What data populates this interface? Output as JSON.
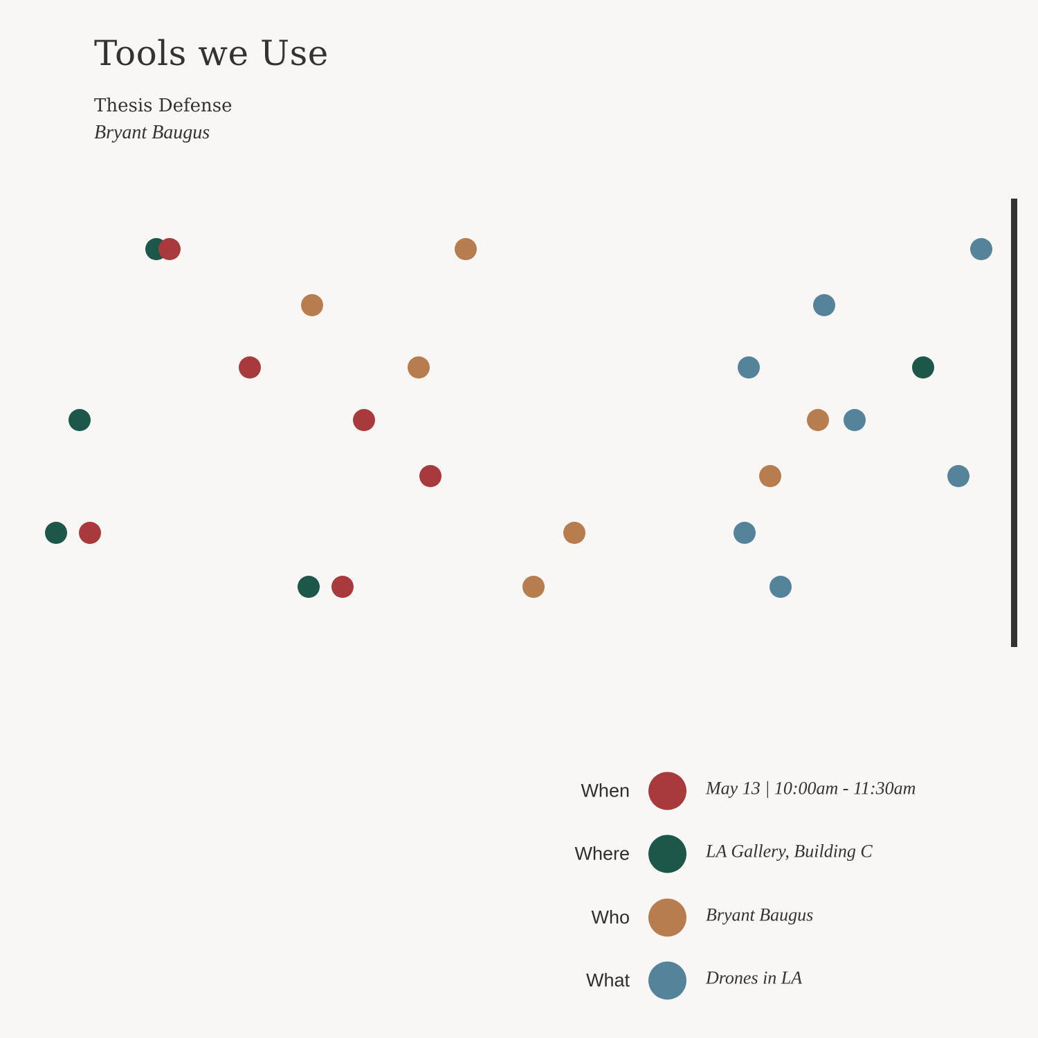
{
  "header": {
    "title": "Tools we Use",
    "subtitle": "Thesis Defense",
    "author": "Bryant Baugus"
  },
  "colors": {
    "when": "#a83a3e",
    "where": "#1c574a",
    "who": "#b77d4f",
    "what": "#55839a",
    "bar": "#333333",
    "background": "#f8f7f5"
  },
  "legend": [
    {
      "key": "when",
      "label": "When",
      "value": "May 13 | 10:00am - 11:30am"
    },
    {
      "key": "where",
      "label": "Where",
      "value": "LA Gallery, Building C"
    },
    {
      "key": "who",
      "label": "Who",
      "value": "Bryant Baugus"
    },
    {
      "key": "what",
      "label": "What",
      "value": "Drones in LA"
    }
  ]
}
